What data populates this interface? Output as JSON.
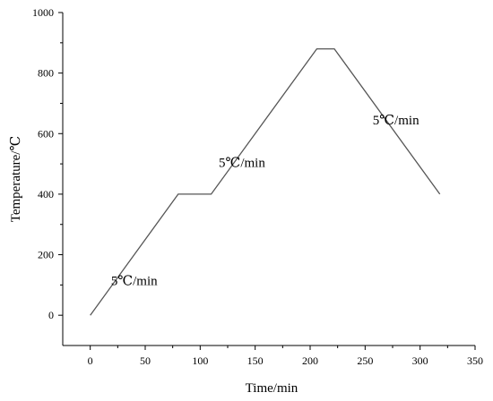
{
  "chart_data": {
    "type": "line",
    "title": "",
    "xlabel": "Time/min",
    "ylabel": "Temperature/℃",
    "xlim": [
      -25,
      350
    ],
    "ylim": [
      -100,
      1000
    ],
    "x_ticks": [
      0,
      50,
      100,
      150,
      200,
      250,
      300,
      350
    ],
    "y_ticks": [
      0,
      200,
      400,
      600,
      800,
      1000
    ],
    "grid": false,
    "legend": "none",
    "series": [
      {
        "x": [
          0,
          80,
          110,
          206,
          222,
          318
        ],
        "y": [
          0,
          400,
          400,
          880,
          880,
          400
        ],
        "color": "#555555"
      }
    ],
    "annotations": [
      {
        "text": "5℃/min",
        "x": 40,
        "y": 100
      },
      {
        "text": "5℃/min",
        "x": 138,
        "y": 490
      },
      {
        "text": "5℃/min",
        "x": 278,
        "y": 630
      }
    ]
  }
}
